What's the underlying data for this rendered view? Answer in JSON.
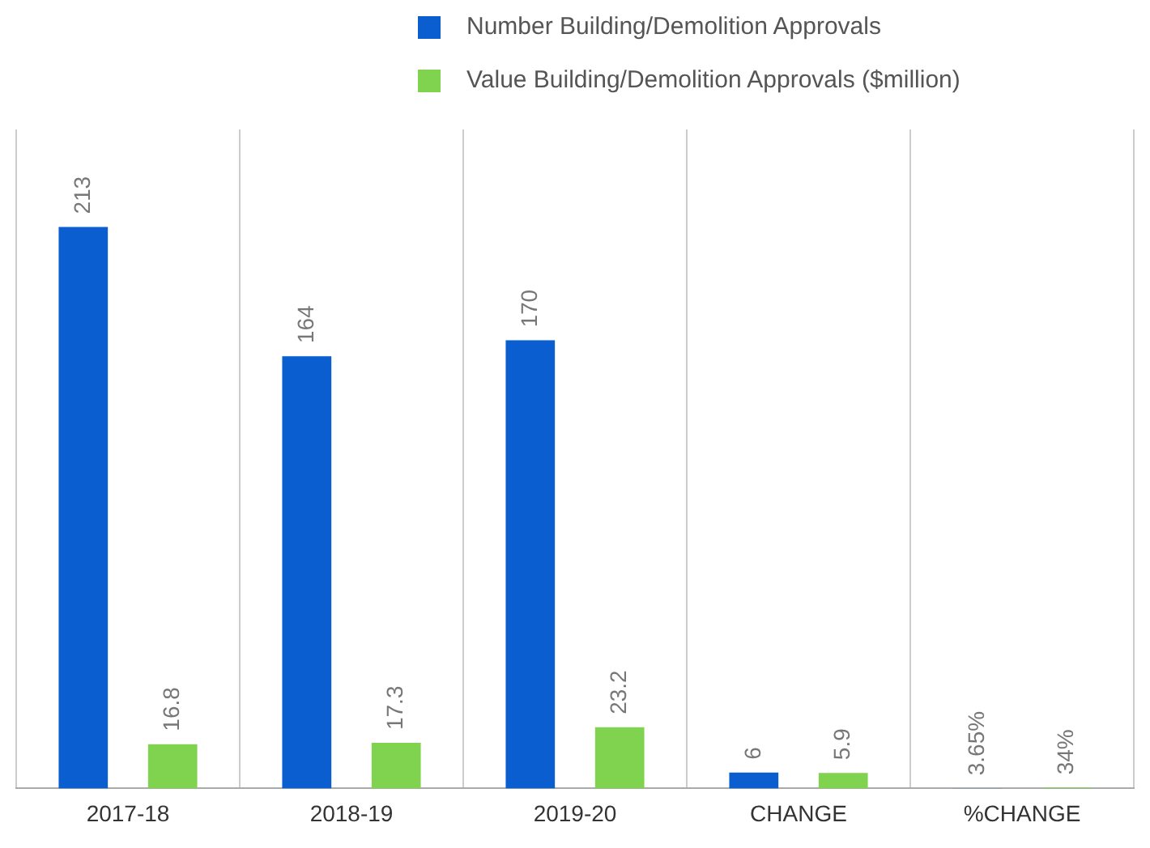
{
  "chart_data": {
    "type": "bar",
    "categories": [
      "2017-18",
      "2018-19",
      "2019-20",
      "CHANGE",
      "%CHANGE"
    ],
    "series": [
      {
        "name": "Number Building/Demolition Approvals",
        "color": "#0b5ed0",
        "values": [
          213,
          164,
          170,
          6,
          0.0365
        ],
        "value_labels": [
          "213",
          "164",
          "170",
          "6",
          "3.65%"
        ]
      },
      {
        "name": "Value Building/Demolition Approvals ($million)",
        "color": "#7fd34e",
        "values": [
          16.8,
          17.3,
          23.2,
          5.9,
          0.34
        ],
        "value_labels": [
          "16.8",
          "17.3",
          "23.2",
          "5.9",
          "34%"
        ]
      }
    ],
    "grid": "x",
    "legend": "top",
    "tick_labels": "x"
  }
}
